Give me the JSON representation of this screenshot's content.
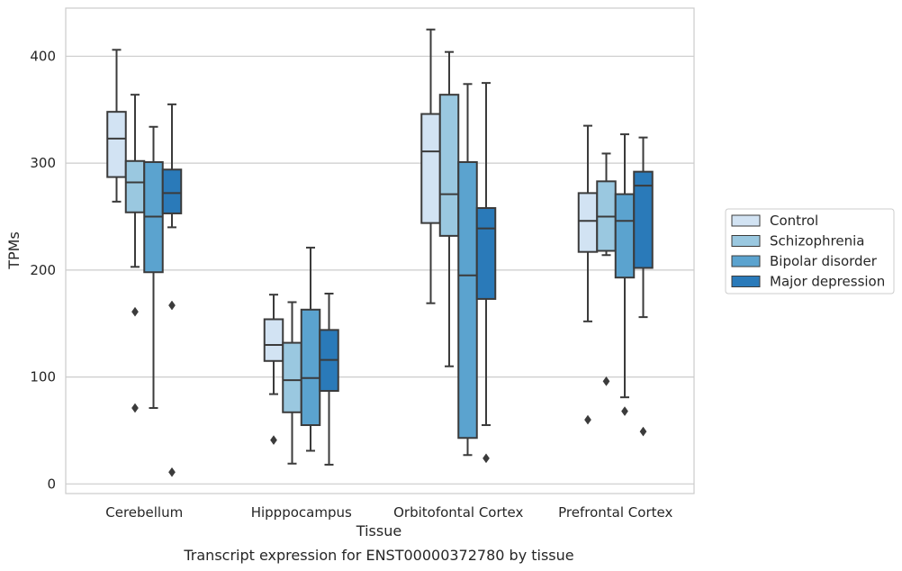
{
  "chart_data": {
    "type": "boxplot",
    "caption": "Transcript expression for ENST00000372780 by tissue",
    "xlabel": "Tissue",
    "ylabel": "TPMs",
    "ylim": [
      -9,
      445
    ],
    "yticks": [
      0,
      100,
      200,
      300,
      400
    ],
    "grid": "horizontal",
    "legend_placement": "right",
    "categories": [
      "Cerebellum",
      "Hipppocampus",
      "Orbitofontal Cortex",
      "Prefrontal Cortex"
    ],
    "series": [
      {
        "name": "Control",
        "color": "#d2e3f3",
        "boxes": [
          {
            "whislo": 264,
            "q1": 287,
            "med": 323,
            "q3": 348,
            "whishi": 406,
            "fliers": []
          },
          {
            "whislo": 84,
            "q1": 115,
            "med": 130,
            "q3": 154,
            "whishi": 177,
            "fliers": [
              41
            ]
          },
          {
            "whislo": 169,
            "q1": 244,
            "med": 311,
            "q3": 346,
            "whishi": 425,
            "fliers": []
          },
          {
            "whislo": 152,
            "q1": 217,
            "med": 246,
            "q3": 272,
            "whishi": 335,
            "fliers": [
              60
            ]
          }
        ]
      },
      {
        "name": "Schizophrenia",
        "color": "#9ac8e0",
        "boxes": [
          {
            "whislo": 203,
            "q1": 254,
            "med": 282,
            "q3": 302,
            "whishi": 364,
            "fliers": [
              161,
              71
            ]
          },
          {
            "whislo": 19,
            "q1": 67,
            "med": 97,
            "q3": 132,
            "whishi": 170,
            "fliers": []
          },
          {
            "whislo": 110,
            "q1": 232,
            "med": 271,
            "q3": 364,
            "whishi": 404,
            "fliers": []
          },
          {
            "whislo": 214,
            "q1": 218,
            "med": 250,
            "q3": 283,
            "whishi": 309,
            "fliers": [
              96
            ]
          }
        ]
      },
      {
        "name": "Bipolar disorder",
        "color": "#5ba3cf",
        "boxes": [
          {
            "whislo": 71,
            "q1": 198,
            "med": 250,
            "q3": 301,
            "whishi": 334,
            "fliers": []
          },
          {
            "whislo": 31,
            "q1": 55,
            "med": 99,
            "q3": 163,
            "whishi": 221,
            "fliers": []
          },
          {
            "whislo": 27,
            "q1": 43,
            "med": 195,
            "q3": 301,
            "whishi": 374,
            "fliers": []
          },
          {
            "whislo": 81,
            "q1": 193,
            "med": 246,
            "q3": 271,
            "whishi": 327,
            "fliers": [
              68
            ]
          }
        ]
      },
      {
        "name": "Major depression",
        "color": "#2a7ab9",
        "boxes": [
          {
            "whislo": 240,
            "q1": 253,
            "med": 272,
            "q3": 294,
            "whishi": 355,
            "fliers": [
              167,
              11
            ]
          },
          {
            "whislo": 18,
            "q1": 87,
            "med": 116,
            "q3": 144,
            "whishi": 178,
            "fliers": []
          },
          {
            "whislo": 55,
            "q1": 173,
            "med": 239,
            "q3": 258,
            "whishi": 375,
            "fliers": [
              24
            ]
          },
          {
            "whislo": 156,
            "q1": 202,
            "med": 279,
            "q3": 292,
            "whishi": 324,
            "fliers": [
              49
            ]
          }
        ]
      }
    ]
  }
}
